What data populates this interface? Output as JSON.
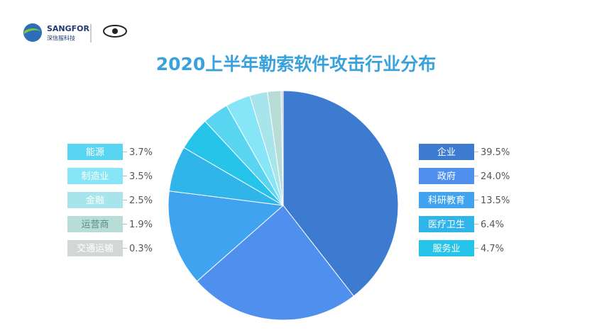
{
  "logo": {
    "brand": "SANGFOR",
    "subtitle": "深信服科技"
  },
  "chart_data": {
    "type": "pie",
    "title": "2020上半年勒索软件攻击行业分布",
    "categories": [
      "企业",
      "政府",
      "科研教育",
      "医疗卫生",
      "服务业",
      "能源",
      "制造业",
      "金融",
      "运营商",
      "交通运输"
    ],
    "values": [
      39.5,
      24.0,
      13.5,
      6.4,
      4.7,
      3.7,
      3.5,
      2.5,
      1.9,
      0.3
    ],
    "value_labels": [
      "39.5%",
      "24.0%",
      "13.5%",
      "6.4%",
      "4.7%",
      "3.7%",
      "3.5%",
      "2.5%",
      "1.9%",
      "0.3%"
    ],
    "colors": [
      "#3d7bd0",
      "#4f90ee",
      "#3fa3ef",
      "#2fb5ea",
      "#27c4ea",
      "#5ad5f1",
      "#86e6f7",
      "#a7e4ec",
      "#b8dcd6",
      "#d3d6d6"
    ]
  }
}
